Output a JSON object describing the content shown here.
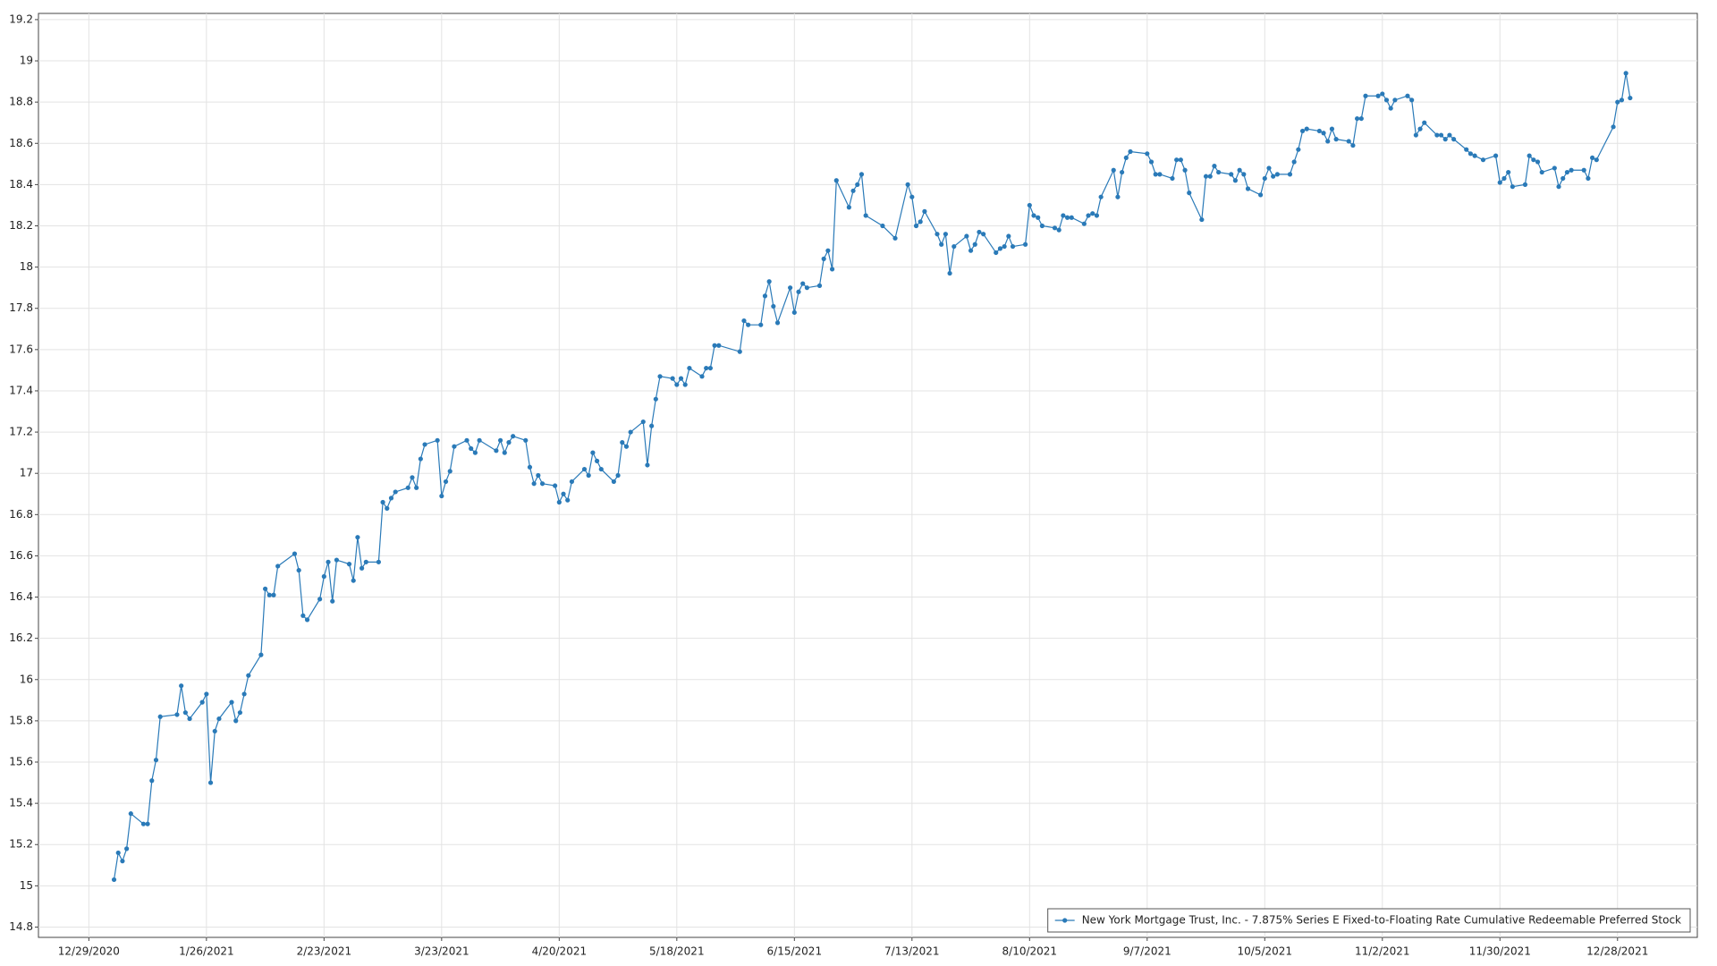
{
  "chart_data": {
    "type": "line",
    "x": [
      "1/4/2021",
      "1/5/2021",
      "1/6/2021",
      "1/7/2021",
      "1/8/2021",
      "1/11/2021",
      "1/12/2021",
      "1/13/2021",
      "1/14/2021",
      "1/15/2021",
      "1/19/2021",
      "1/20/2021",
      "1/21/2021",
      "1/22/2021",
      "1/25/2021",
      "1/26/2021",
      "1/27/2021",
      "1/28/2021",
      "1/29/2021",
      "2/1/2021",
      "2/2/2021",
      "2/3/2021",
      "2/4/2021",
      "2/5/2021",
      "2/8/2021",
      "2/9/2021",
      "2/10/2021",
      "2/11/2021",
      "2/12/2021",
      "2/16/2021",
      "2/17/2021",
      "2/18/2021",
      "2/19/2021",
      "2/22/2021",
      "2/23/2021",
      "2/24/2021",
      "2/25/2021",
      "2/26/2021",
      "3/1/2021",
      "3/2/2021",
      "3/3/2021",
      "3/4/2021",
      "3/5/2021",
      "3/8/2021",
      "3/9/2021",
      "3/10/2021",
      "3/11/2021",
      "3/12/2021",
      "3/15/2021",
      "3/16/2021",
      "3/17/2021",
      "3/18/2021",
      "3/19/2021",
      "3/22/2021",
      "3/23/2021",
      "3/24/2021",
      "3/25/2021",
      "3/26/2021",
      "3/29/2021",
      "3/30/2021",
      "3/31/2021",
      "4/1/2021",
      "4/5/2021",
      "4/6/2021",
      "4/7/2021",
      "4/8/2021",
      "4/9/2021",
      "4/12/2021",
      "4/13/2021",
      "4/14/2021",
      "4/15/2021",
      "4/16/2021",
      "4/19/2021",
      "4/20/2021",
      "4/21/2021",
      "4/22/2021",
      "4/23/2021",
      "4/26/2021",
      "4/27/2021",
      "4/28/2021",
      "4/29/2021",
      "4/30/2021",
      "5/3/2021",
      "5/4/2021",
      "5/5/2021",
      "5/6/2021",
      "5/7/2021",
      "5/10/2021",
      "5/11/2021",
      "5/12/2021",
      "5/13/2021",
      "5/14/2021",
      "5/17/2021",
      "5/18/2021",
      "5/19/2021",
      "5/20/2021",
      "5/21/2021",
      "5/24/2021",
      "5/25/2021",
      "5/26/2021",
      "5/27/2021",
      "5/28/2021",
      "6/2/2021",
      "6/3/2021",
      "6/4/2021",
      "6/7/2021",
      "6/8/2021",
      "6/9/2021",
      "6/10/2021",
      "6/11/2021",
      "6/14/2021",
      "6/15/2021",
      "6/16/2021",
      "6/17/2021",
      "6/18/2021",
      "6/21/2021",
      "6/22/2021",
      "6/23/2021",
      "6/24/2021",
      "6/25/2021",
      "6/28/2021",
      "6/29/2021",
      "6/30/2021",
      "7/1/2021",
      "7/2/2021",
      "7/6/2021",
      "7/9/2021",
      "7/12/2021",
      "7/13/2021",
      "7/14/2021",
      "7/15/2021",
      "7/16/2021",
      "7/19/2021",
      "7/20/2021",
      "7/21/2021",
      "7/22/2021",
      "7/23/2021",
      "7/26/2021",
      "7/27/2021",
      "7/28/2021",
      "7/29/2021",
      "7/30/2021",
      "8/2/2021",
      "8/3/2021",
      "8/4/2021",
      "8/5/2021",
      "8/6/2021",
      "8/9/2021",
      "8/10/2021",
      "8/11/2021",
      "8/12/2021",
      "8/13/2021",
      "8/16/2021",
      "8/17/2021",
      "8/18/2021",
      "8/19/2021",
      "8/20/2021",
      "8/23/2021",
      "8/24/2021",
      "8/25/2021",
      "8/26/2021",
      "8/27/2021",
      "8/30/2021",
      "8/31/2021",
      "9/1/2021",
      "9/2/2021",
      "9/3/2021",
      "9/7/2021",
      "9/8/2021",
      "9/9/2021",
      "9/10/2021",
      "9/13/2021",
      "9/14/2021",
      "9/15/2021",
      "9/16/2021",
      "9/17/2021",
      "9/20/2021",
      "9/21/2021",
      "9/22/2021",
      "9/23/2021",
      "9/24/2021",
      "9/27/2021",
      "9/28/2021",
      "9/29/2021",
      "9/30/2021",
      "10/1/2021",
      "10/4/2021",
      "10/5/2021",
      "10/6/2021",
      "10/7/2021",
      "10/8/2021",
      "10/11/2021",
      "10/12/2021",
      "10/13/2021",
      "10/14/2021",
      "10/15/2021",
      "10/18/2021",
      "10/19/2021",
      "10/20/2021",
      "10/21/2021",
      "10/22/2021",
      "10/25/2021",
      "10/26/2021",
      "10/27/2021",
      "10/28/2021",
      "10/29/2021",
      "11/1/2021",
      "11/2/2021",
      "11/3/2021",
      "11/4/2021",
      "11/5/2021",
      "11/8/2021",
      "11/9/2021",
      "11/10/2021",
      "11/11/2021",
      "11/12/2021",
      "11/15/2021",
      "11/16/2021",
      "11/17/2021",
      "11/18/2021",
      "11/19/2021",
      "11/22/2021",
      "11/23/2021",
      "11/24/2021",
      "11/26/2021",
      "11/29/2021",
      "11/30/2021",
      "12/1/2021",
      "12/2/2021",
      "12/3/2021",
      "12/6/2021",
      "12/7/2021",
      "12/8/2021",
      "12/9/2021",
      "12/10/2021",
      "12/13/2021",
      "12/14/2021",
      "12/15/2021",
      "12/16/2021",
      "12/17/2021",
      "12/20/2021",
      "12/21/2021",
      "12/22/2021",
      "12/23/2021",
      "12/27/2021",
      "12/28/2021",
      "12/29/2021",
      "12/30/2021",
      "12/31/2021"
    ],
    "series": [
      {
        "name": "New York Mortgage Trust, Inc. - 7.875% Series E Fixed-to-Floating Rate Cumulative Redeemable Preferred Stock",
        "color": "#2a7ab8",
        "values": [
          15.03,
          15.16,
          15.12,
          15.18,
          15.35,
          15.3,
          15.3,
          15.51,
          15.61,
          15.82,
          15.83,
          15.97,
          15.84,
          15.81,
          15.89,
          15.93,
          15.5,
          15.75,
          15.81,
          15.89,
          15.8,
          15.84,
          15.93,
          16.02,
          16.12,
          16.44,
          16.41,
          16.41,
          16.55,
          16.61,
          16.53,
          16.31,
          16.29,
          16.39,
          16.5,
          16.57,
          16.38,
          16.58,
          16.56,
          16.48,
          16.69,
          16.54,
          16.57,
          16.57,
          16.86,
          16.83,
          16.88,
          16.91,
          16.93,
          16.98,
          16.93,
          17.07,
          17.14,
          17.16,
          16.89,
          16.96,
          17.01,
          17.13,
          17.16,
          17.12,
          17.1,
          17.16,
          17.11,
          17.16,
          17.1,
          17.15,
          17.18,
          17.16,
          17.03,
          16.95,
          16.99,
          16.95,
          16.94,
          16.86,
          16.9,
          16.87,
          16.96,
          17.02,
          16.99,
          17.1,
          17.06,
          17.02,
          16.96,
          16.99,
          17.15,
          17.13,
          17.2,
          17.25,
          17.04,
          17.23,
          17.36,
          17.47,
          17.46,
          17.43,
          17.46,
          17.43,
          17.51,
          17.47,
          17.51,
          17.51,
          17.62,
          17.62,
          17.59,
          17.74,
          17.72,
          17.72,
          17.86,
          17.93,
          17.81,
          17.73,
          17.9,
          17.78,
          17.88,
          17.92,
          17.9,
          17.91,
          18.04,
          18.08,
          17.99,
          18.42,
          18.29,
          18.37,
          18.4,
          18.45,
          18.25,
          18.2,
          18.14,
          18.4,
          18.34,
          18.2,
          18.22,
          18.27,
          18.16,
          18.11,
          18.16,
          17.97,
          18.1,
          18.15,
          18.08,
          18.11,
          18.17,
          18.16,
          18.07,
          18.09,
          18.1,
          18.15,
          18.1,
          18.11,
          18.3,
          18.25,
          18.24,
          18.2,
          18.19,
          18.18,
          18.25,
          18.24,
          18.24,
          18.21,
          18.25,
          18.26,
          18.25,
          18.34,
          18.47,
          18.34,
          18.46,
          18.53,
          18.56,
          18.55,
          18.51,
          18.45,
          18.45,
          18.43,
          18.52,
          18.52,
          18.47,
          18.36,
          18.23,
          18.44,
          18.44,
          18.49,
          18.46,
          18.45,
          18.42,
          18.47,
          18.45,
          18.38,
          18.35,
          18.43,
          18.48,
          18.44,
          18.45,
          18.45,
          18.51,
          18.57,
          18.66,
          18.67,
          18.66,
          18.65,
          18.61,
          18.67,
          18.62,
          18.61,
          18.59,
          18.72,
          18.72,
          18.83,
          18.83,
          18.84,
          18.81,
          18.77,
          18.81,
          18.83,
          18.81,
          18.64,
          18.67,
          18.7,
          18.64,
          18.64,
          18.62,
          18.64,
          18.62,
          18.57,
          18.55,
          18.54,
          18.52,
          18.54,
          18.41,
          18.43,
          18.46,
          18.39,
          18.4,
          18.54,
          18.52,
          18.51,
          18.46,
          18.48,
          18.39,
          18.43,
          18.46,
          18.47,
          18.47,
          18.43,
          18.53,
          18.52,
          18.68,
          18.8,
          18.81,
          18.94,
          18.82
        ]
      }
    ],
    "xlim": [
      "12/17/2020",
      "1/16/2022"
    ],
    "xticks": [
      "12/29/2020",
      "1/26/2021",
      "2/23/2021",
      "3/23/2021",
      "4/20/2021",
      "5/18/2021",
      "6/15/2021",
      "7/13/2021",
      "8/10/2021",
      "9/7/2021",
      "10/5/2021",
      "11/2/2021",
      "11/30/2021",
      "12/28/2021"
    ],
    "ylim": [
      14.75,
      19.23
    ],
    "yticks": [
      14.8,
      15,
      15.2,
      15.4,
      15.6,
      15.8,
      16,
      16.2,
      16.4,
      16.6,
      16.8,
      17,
      17.2,
      17.4,
      17.6,
      17.8,
      18,
      18.2,
      18.4,
      18.6,
      18.8,
      19,
      19.2
    ],
    "grid": true,
    "legend": "lower right"
  }
}
